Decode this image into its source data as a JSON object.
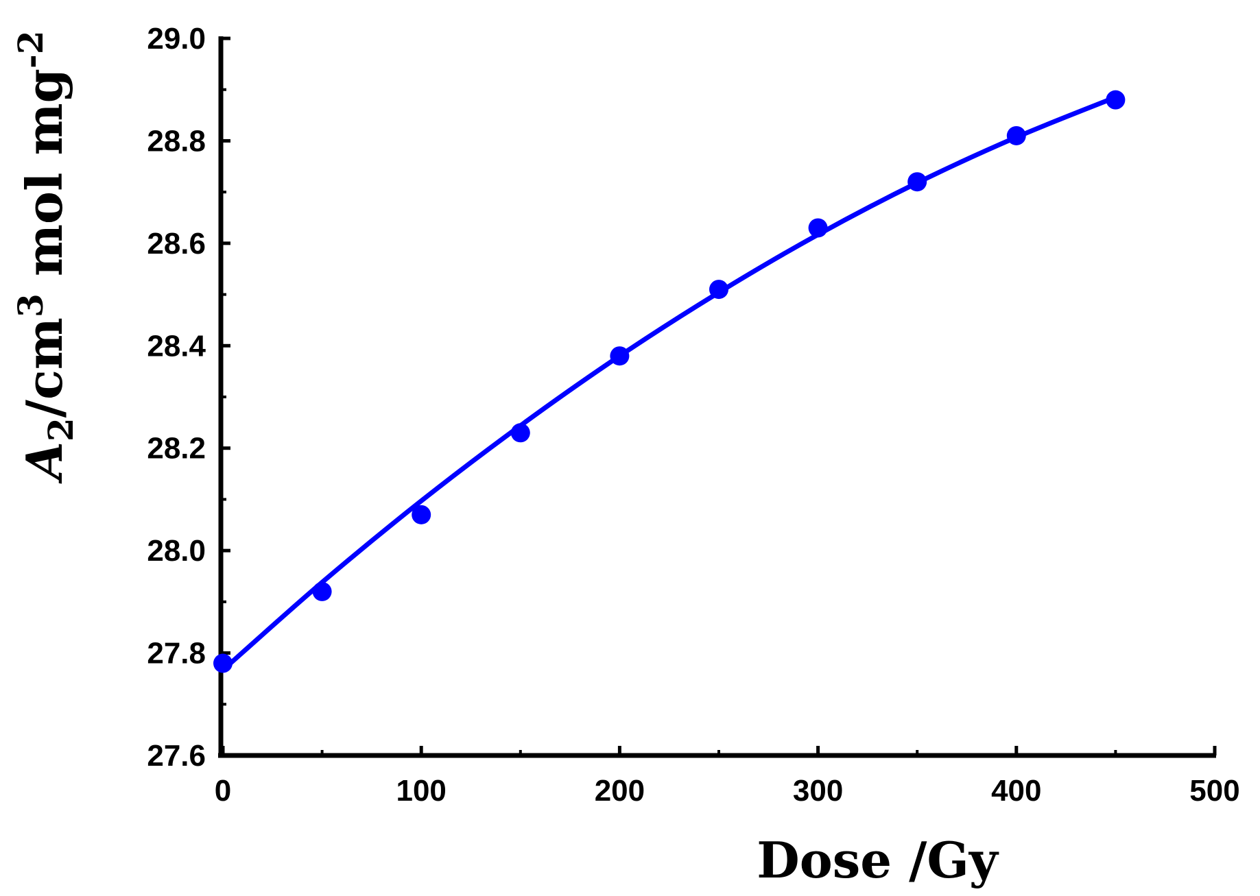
{
  "chart_data": {
    "type": "scatter",
    "title": "",
    "xlabel": "Dose /Gy",
    "ylabel": {
      "base": "A",
      "base_sub": "2",
      "unit_1": "/cm",
      "unit_1_sup": "3",
      "unit_2": " mol mg",
      "unit_2_sup": "-2"
    },
    "xlim": [
      0,
      500
    ],
    "ylim": [
      27.6,
      29.0
    ],
    "x_ticks": [
      "0",
      "100",
      "200",
      "300",
      "400",
      "500"
    ],
    "y_ticks": [
      "27.6",
      "27.8",
      "28.0",
      "28.2",
      "28.4",
      "28.6",
      "28.8",
      "29.0"
    ],
    "x_tick_values": [
      0,
      100,
      200,
      300,
      400,
      500
    ],
    "y_tick_values": [
      27.6,
      27.8,
      28.0,
      28.2,
      28.4,
      28.6,
      28.8,
      29.0
    ],
    "x_minor_ticks": [
      50,
      150,
      250,
      350,
      450
    ],
    "y_minor_ticks": [
      27.7,
      27.9,
      28.1,
      28.3,
      28.5,
      28.7,
      28.9
    ],
    "series": [
      {
        "kind": "points",
        "color": "#0000ff",
        "x": [
          0,
          50,
          100,
          150,
          200,
          250,
          300,
          350,
          400,
          450
        ],
        "y": [
          27.78,
          27.92,
          28.07,
          28.23,
          28.38,
          28.51,
          28.63,
          28.72,
          28.81,
          28.88
        ]
      },
      {
        "kind": "fit-line",
        "color": "#0000ff",
        "x": [
          0,
          50,
          100,
          150,
          200,
          250,
          300,
          350,
          400,
          450
        ],
        "y": [
          27.767,
          27.938,
          28.097,
          28.244,
          28.38,
          28.504,
          28.617,
          28.718,
          28.807,
          28.885
        ]
      }
    ],
    "grid": false,
    "legend": "none"
  }
}
